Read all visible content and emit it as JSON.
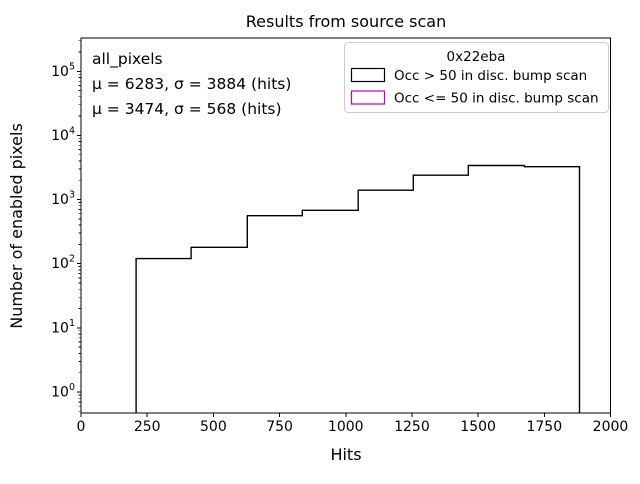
{
  "chart_data": {
    "type": "histogram-step",
    "title": "Results from source scan",
    "xlabel": "Hits",
    "ylabel": "Number of enabled pixels",
    "yscale": "log",
    "xlim": [
      0,
      2000
    ],
    "ylim": [
      0.47,
      330000
    ],
    "xticks": [
      0,
      250,
      500,
      750,
      1000,
      1250,
      1500,
      1750,
      2000
    ],
    "ytick_exponents": [
      0,
      1,
      2,
      3,
      4,
      5
    ],
    "grid": false,
    "bin_edges": [
      208,
      416,
      628,
      836,
      1047,
      1255,
      1463,
      1675,
      1883
    ],
    "series": [
      {
        "name": "Occ > 50 in disc. bump scan",
        "color": "#000000",
        "counts": [
          120,
          180,
          560,
          680,
          1400,
          2400,
          3400,
          3250
        ]
      },
      {
        "name": "Occ <= 50 in disc. bump scan",
        "color": "#bf00bf",
        "counts": []
      }
    ],
    "legend": {
      "title": "0x22eba",
      "position": "upper right",
      "border_color": "#cccccc",
      "entries": [
        {
          "label": "Occ > 50 in disc. bump scan",
          "color": "#000000"
        },
        {
          "label": "Occ <= 50 in disc. bump scan",
          "color": "#bf00bf"
        }
      ]
    },
    "annotations": [
      {
        "text": "all_pixels",
        "color": "#000000"
      },
      {
        "text": "μ = 6283, σ = 3884 (hits)",
        "color": "#000000"
      },
      {
        "text": "μ = 3474, σ = 568 (hits)",
        "color": "#bf00bf"
      }
    ]
  }
}
